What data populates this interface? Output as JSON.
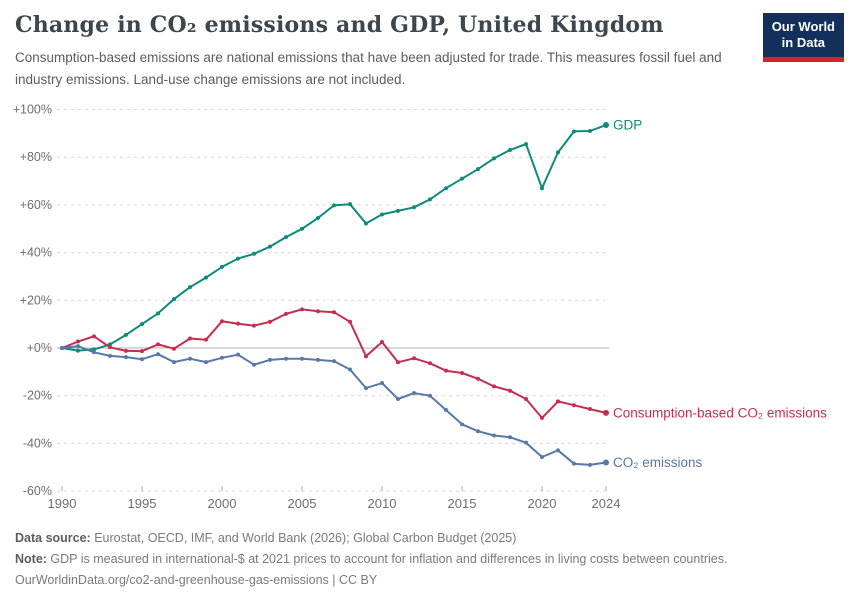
{
  "header": {
    "title": "Change in CO₂ emissions and GDP, United Kingdom",
    "subtitle": "Consumption-based emissions are national emissions that have been adjusted for trade. This measures fossil fuel and industry emissions. Land-use change emissions are not included."
  },
  "logo": {
    "line1": "Our World",
    "line2": "in Data",
    "bg_color": "#12305b",
    "bar_color": "#cf2430"
  },
  "chart_data": {
    "type": "line",
    "x": [
      1990,
      1991,
      1992,
      1993,
      1994,
      1995,
      1996,
      1997,
      1998,
      1999,
      2000,
      2001,
      2002,
      2003,
      2004,
      2005,
      2006,
      2007,
      2008,
      2009,
      2010,
      2011,
      2012,
      2013,
      2014,
      2015,
      2016,
      2017,
      2018,
      2019,
      2020,
      2021,
      2022,
      2023,
      2024
    ],
    "series": [
      {
        "name": "GDP",
        "color": "#0c8a7a",
        "values": [
          0,
          -1.1,
          -0.6,
          1.5,
          5.5,
          10,
          14.5,
          20.5,
          25.5,
          29.5,
          34,
          37.5,
          39.5,
          42.5,
          46.5,
          50,
          54.5,
          59.8,
          60.3,
          52.2,
          56,
          57.5,
          59,
          62.3,
          67,
          71,
          75,
          79.5,
          83,
          85.5,
          67,
          82,
          90.8,
          91,
          93.5
        ]
      },
      {
        "name": "Consumption-based CO₂ emissions",
        "color": "#c62e4f",
        "values": [
          0,
          2.7,
          4.9,
          0.3,
          -1.2,
          -1.3,
          1.5,
          -0.3,
          4,
          3.5,
          11.2,
          10.2,
          9.4,
          11,
          14.3,
          16.2,
          15.4,
          15,
          11,
          -3.5,
          2.5,
          -6,
          -4.3,
          -6.4,
          -9.5,
          -10.5,
          -12.9,
          -16.1,
          -17.9,
          -21.4,
          -29.3,
          -22.4,
          -24,
          -25.6,
          -27.2
        ]
      },
      {
        "name": "CO₂ emissions",
        "color": "#5878a8",
        "values": [
          0,
          0.8,
          -1.8,
          -3.3,
          -3.8,
          -4.7,
          -2.6,
          -5.9,
          -4.5,
          -5.9,
          -4.1,
          -2.8,
          -7,
          -5,
          -4.5,
          -4.5,
          -5,
          -5.5,
          -9,
          -16.8,
          -14.7,
          -21.4,
          -18.9,
          -20,
          -26,
          -32,
          -34.9,
          -36.7,
          -37.4,
          -39.7,
          -45.7,
          -42.9,
          -48.5,
          -49,
          -48
        ]
      }
    ],
    "title": "Change in CO₂ emissions and GDP, United Kingdom",
    "xlabel": "",
    "ylabel": "",
    "ylim": [
      -60,
      100
    ],
    "ytick_values": [
      100,
      80,
      60,
      40,
      20,
      0,
      -20,
      -40,
      -60
    ],
    "ytick_labels": [
      "+100%",
      "+80%",
      "+60%",
      "+40%",
      "+20%",
      "+0%",
      "-20%",
      "-40%",
      "-60%"
    ],
    "xtick_values": [
      1990,
      1995,
      2000,
      2005,
      2010,
      2015,
      2020,
      2024
    ],
    "xtick_labels": [
      "1990",
      "1995",
      "2000",
      "2005",
      "2010",
      "2015",
      "2020",
      "2024"
    ],
    "grid": "horizontal-dashed",
    "zero_line": true,
    "legend_position": "end-of-line-labels"
  },
  "footer": {
    "source_label": "Data source:",
    "source_text": " Eurostat, OECD, IMF, and World Bank (2026); Global Carbon Budget (2025)",
    "note_label": "Note:",
    "note_text": " GDP is measured in international-$ at 2021 prices to account for inflation and differences in living costs between countries.",
    "url_line": "OurWorldinData.org/co2-and-greenhouse-gas-emissions | CC BY"
  }
}
